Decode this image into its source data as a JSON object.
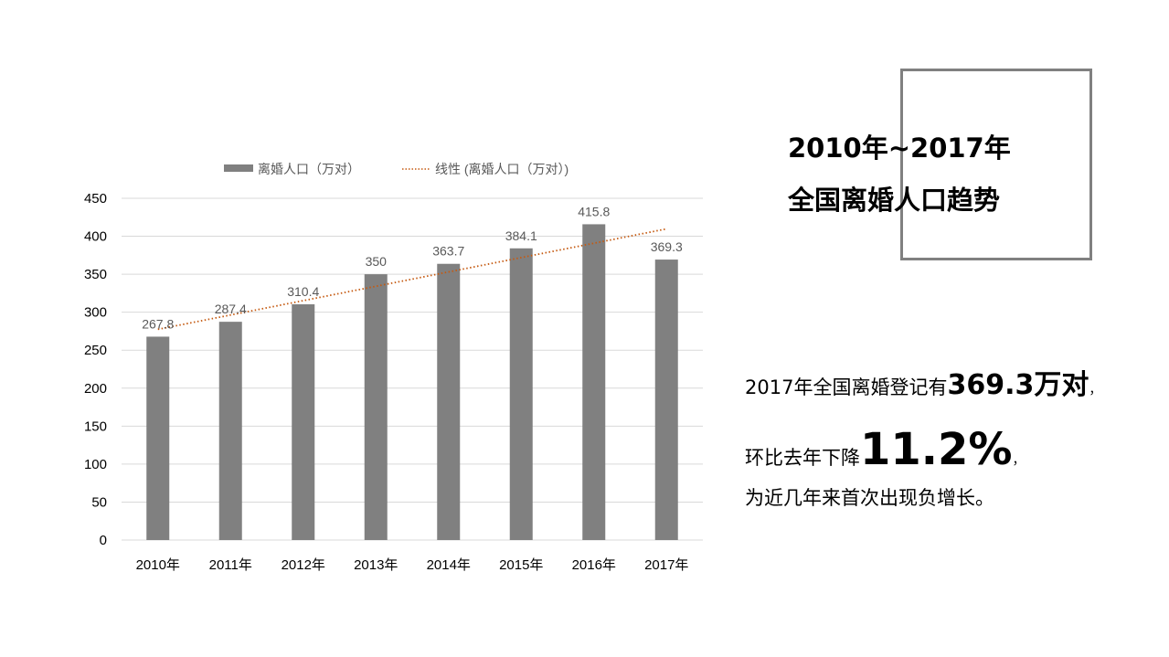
{
  "chart_data": {
    "type": "bar",
    "title": "",
    "categories": [
      "2010年",
      "2011年",
      "2012年",
      "2013年",
      "2014年",
      "2015年",
      "2016年",
      "2017年"
    ],
    "series": [
      {
        "name": "离婚人口（万对）",
        "type": "bar",
        "color": "#808080",
        "values": [
          267.8,
          287.4,
          310.4,
          350,
          363.7,
          384.1,
          415.8,
          369.3
        ]
      },
      {
        "name": "线性 (离婚人口（万对）)",
        "type": "trendline-linear",
        "color": "#C55A11",
        "values": [
          276,
          295,
          314,
          333,
          352,
          371,
          390,
          409
        ]
      }
    ],
    "data_labels": [
      "267.8",
      "287.4",
      "310.4",
      "350",
      "363.7",
      "384.1",
      "415.8",
      "369.3"
    ],
    "xlabel": "",
    "ylabel": "",
    "ylim": [
      0,
      450
    ],
    "yticks": [
      0,
      50,
      100,
      150,
      200,
      250,
      300,
      350,
      400,
      450
    ],
    "grid": true,
    "legend_position": "top"
  },
  "legend": {
    "bar_label": "离婚人口（万对）",
    "trend_label": "线性 (离婚人口（万对）)"
  },
  "title": {
    "line1": "2010年~2017年",
    "line2": "全国离婚人口趋势"
  },
  "summary": {
    "line1_prefix": "2017年全国离婚登记有",
    "line1_value": "369.3万对",
    "line1_suffix": "，",
    "line2_prefix": "环比去年下降",
    "line2_value": "11.2%",
    "line2_suffix": "，",
    "line3": "为近几年来首次出现负增长。"
  },
  "colors": {
    "bar": "#808080",
    "trend": "#C55A11",
    "grid": "#D9D9D9",
    "box": "#808080"
  }
}
